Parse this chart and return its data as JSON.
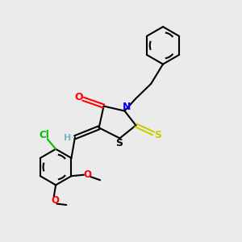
{
  "bg_color": "#ebebeb",
  "bond_color": "#000000",
  "atom_colors": {
    "O": "#ff0000",
    "N": "#0000ff",
    "S_thioxo": "#cccc00",
    "S_ring": "#000000",
    "Cl": "#00bb00",
    "H": "#7fb3c8",
    "C": "#000000"
  },
  "figsize": [
    3.0,
    3.0
  ],
  "dpi": 100
}
